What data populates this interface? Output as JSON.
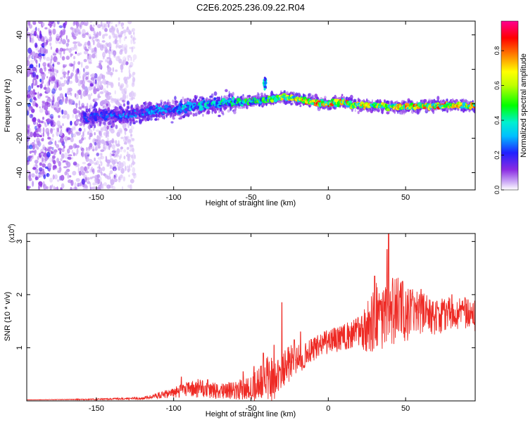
{
  "title": "C2E6.2025.236.09.22.R04",
  "colors": {
    "background": "#ffffff",
    "snr_line": "#ee2a24",
    "spectrogram_noise": "#b792f0",
    "spectrogram_core": "#4000e0"
  },
  "chart_data": [
    {
      "type": "heatmap",
      "xlabel": "Height of straight line (km)",
      "ylabel": "Frequency (Hz)",
      "xlim": [
        -195,
        95
      ],
      "ylim": [
        -50,
        48
      ],
      "xticks": [
        -150,
        -100,
        -50,
        0,
        50
      ],
      "yticks": [
        40,
        20,
        0,
        -20,
        -40
      ],
      "colorbar": {
        "label": "Normalized spectral amplitude",
        "range": [
          0,
          0.97
        ],
        "ticks": [
          "0.0",
          "0.2",
          "0.4",
          "0.6",
          "0.8"
        ],
        "tick_values": [
          0.0,
          0.2,
          0.4,
          0.6,
          0.8
        ],
        "colormap": [
          "#ffffff",
          "#8a2be2",
          "#2020ff",
          "#00e0ff",
          "#00ff00",
          "#ffff00",
          "#ff8000",
          "#ff0000",
          "#ff00a0"
        ]
      },
      "ridge": {
        "description_points_x": [
          -155,
          -130,
          -100,
          -75,
          -55,
          -40,
          -30,
          -20,
          -10,
          0,
          10,
          20,
          30,
          50,
          70,
          95
        ],
        "frequency_hz": [
          -8,
          -6,
          -3,
          0,
          1,
          2,
          4,
          3,
          1,
          0,
          1,
          -1,
          -1,
          -2,
          -1,
          -1
        ],
        "peak_amplitude": [
          0.25,
          0.3,
          0.35,
          0.45,
          0.5,
          0.55,
          0.7,
          0.75,
          0.85,
          0.9,
          0.8,
          0.75,
          0.7,
          0.8,
          0.85,
          0.8
        ]
      }
    },
    {
      "type": "line",
      "xlabel": "Height of straight line (km)",
      "ylabel": "SNR (10 * v/v)",
      "scale_label": "(x10",
      "scale_exponent": "4",
      "xlim": [
        -195,
        95
      ],
      "ylim": [
        0,
        3.15
      ],
      "xticks": [
        -150,
        -100,
        -50,
        0,
        50
      ],
      "yticks": [
        1,
        2,
        3
      ],
      "series": [
        {
          "x": [
            -195,
            -150,
            -120,
            -110,
            -100,
            -90,
            -80,
            -70,
            -60,
            -50,
            -45,
            -40,
            -35,
            -30,
            -25,
            -20,
            -15,
            -10,
            -5,
            0,
            5,
            10,
            20,
            25,
            30,
            35,
            40,
            45,
            50,
            60,
            70,
            80,
            90,
            95
          ],
          "mean": [
            0.02,
            0.03,
            0.05,
            0.1,
            0.15,
            0.25,
            0.22,
            0.18,
            0.2,
            0.25,
            0.35,
            0.45,
            0.4,
            0.55,
            0.7,
            0.8,
            0.85,
            0.95,
            1.05,
            1.1,
            1.15,
            1.2,
            1.3,
            1.4,
            1.55,
            1.6,
            1.65,
            1.7,
            1.6,
            1.65,
            1.6,
            1.65,
            1.65,
            1.6
          ],
          "spread": [
            0.0,
            0.01,
            0.02,
            0.05,
            0.08,
            0.15,
            0.15,
            0.12,
            0.15,
            0.2,
            0.3,
            0.35,
            0.35,
            0.3,
            0.3,
            0.25,
            0.2,
            0.2,
            0.2,
            0.2,
            0.2,
            0.2,
            0.25,
            0.4,
            0.55,
            0.6,
            0.55,
            0.55,
            0.45,
            0.35,
            0.3,
            0.25,
            0.25,
            0.25
          ],
          "spikes": [
            [
              -95,
              0.45
            ],
            [
              -78,
              0.4
            ],
            [
              -55,
              0.55
            ],
            [
              -48,
              0.65
            ],
            [
              -42,
              0.9
            ],
            [
              -35,
              1.05
            ],
            [
              -30,
              1.85
            ],
            [
              -22,
              1.15
            ],
            [
              -18,
              1.3
            ],
            [
              30,
              2.35
            ],
            [
              38,
              2.85
            ],
            [
              39,
              3.15
            ],
            [
              48,
              2.25
            ],
            [
              60,
              2.1
            ],
            [
              80,
              2.0
            ]
          ]
        }
      ]
    }
  ]
}
